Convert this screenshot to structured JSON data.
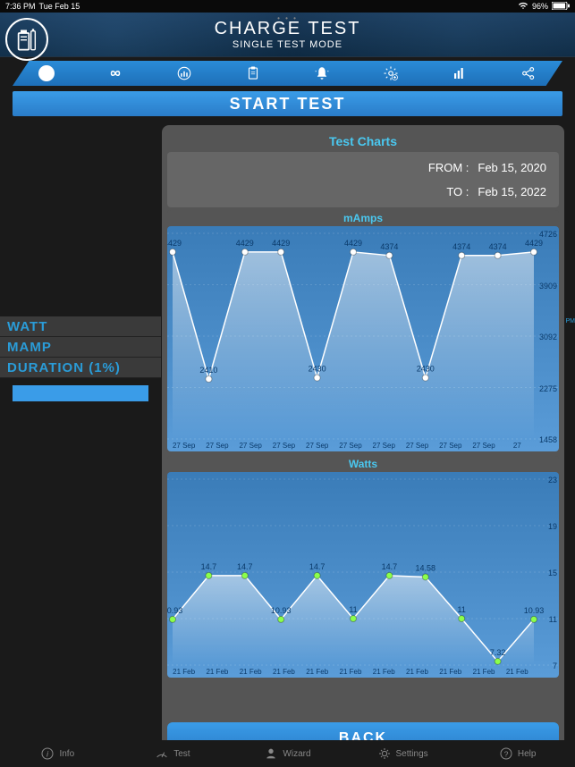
{
  "status": {
    "time": "7:36 PM",
    "day": "Tue Feb 15",
    "wifi": "wifi",
    "battery_pct": "96%",
    "batt": "batt"
  },
  "header": {
    "title": "CHARGE TEST",
    "subtitle": "SINGLE TEST MODE",
    "dots": "• • •"
  },
  "tabs": {
    "badge": "1"
  },
  "start_label": "START TEST",
  "left": {
    "rows": [
      "WATT",
      "MAMP",
      "DURATION (1%)"
    ],
    "pm": "0 PM"
  },
  "modal": {
    "title": "Test Charts",
    "from_label": "FROM :",
    "from_val": "Feb 15, 2020",
    "to_label": "TO :",
    "to_val": "Feb 15, 2022",
    "chart1": {
      "label": "mAmps",
      "values": [
        4429,
        2410,
        4429,
        4429,
        2430,
        4429,
        4374,
        2430,
        4374,
        4374,
        4429
      ],
      "ylabels": [
        "4726",
        "3909",
        "3092",
        "2275",
        "1458"
      ],
      "xlabels": [
        "27 Sep",
        "27 Sep",
        "27 Sep",
        "27 Sep",
        "27 Sep",
        "27 Sep",
        "27 Sep",
        "27 Sep",
        "27 Sep",
        "27 Sep",
        "27"
      ]
    },
    "chart2": {
      "label": "Watts",
      "values": [
        10.93,
        14.7,
        14.7,
        10.93,
        14.7,
        11.0,
        14.7,
        14.58,
        11.0,
        7.32,
        10.93
      ],
      "ylabels": [
        "23",
        "19",
        "15",
        "11",
        "7"
      ],
      "xlabels": [
        "21 Feb",
        "21 Feb",
        "21 Feb",
        "21 Feb",
        "21 Feb",
        "21 Feb",
        "21 Feb",
        "21 Feb",
        "21 Feb",
        "21 Feb",
        "21 Feb"
      ]
    },
    "back": "BACK"
  },
  "nav": [
    {
      "icon": "info",
      "label": "Info"
    },
    {
      "icon": "speed",
      "label": "Test"
    },
    {
      "icon": "wiz",
      "label": "Wizard"
    },
    {
      "icon": "gear",
      "label": "Settings"
    },
    {
      "icon": "help",
      "label": "Help"
    }
  ],
  "colors": {
    "accent": "#2a9cd8",
    "marker_green": "#8cff4c"
  }
}
